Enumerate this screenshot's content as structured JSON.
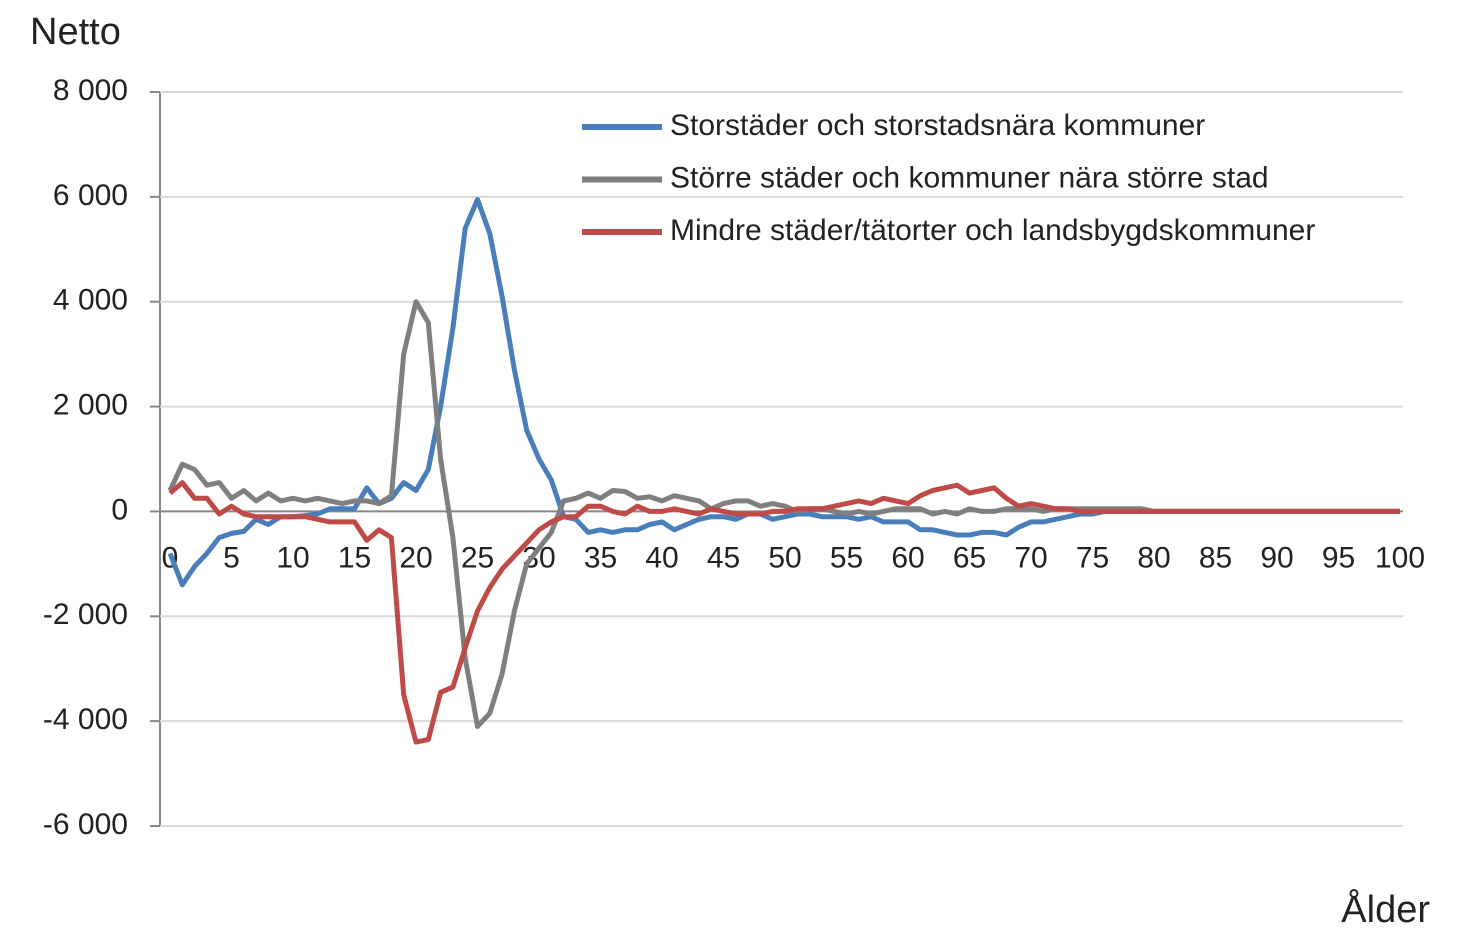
{
  "chart_data": {
    "type": "line",
    "y_label": "Netto",
    "x_label": "Ålder",
    "x": [
      0,
      1,
      2,
      3,
      4,
      5,
      6,
      7,
      8,
      9,
      10,
      11,
      12,
      13,
      14,
      15,
      16,
      17,
      18,
      19,
      20,
      21,
      22,
      23,
      24,
      25,
      26,
      27,
      28,
      29,
      30,
      31,
      32,
      33,
      34,
      35,
      36,
      37,
      38,
      39,
      40,
      41,
      42,
      43,
      44,
      45,
      46,
      47,
      48,
      49,
      50,
      51,
      52,
      53,
      54,
      55,
      56,
      57,
      58,
      59,
      60,
      61,
      62,
      63,
      64,
      65,
      66,
      67,
      68,
      69,
      70,
      71,
      72,
      73,
      74,
      75,
      76,
      77,
      78,
      79,
      80,
      81,
      82,
      83,
      84,
      85,
      86,
      87,
      88,
      89,
      90,
      91,
      92,
      93,
      94,
      95,
      96,
      97,
      98,
      99,
      100
    ],
    "xlim": [
      0,
      100
    ],
    "xticks": [
      0,
      5,
      10,
      15,
      20,
      25,
      30,
      35,
      40,
      45,
      50,
      55,
      60,
      65,
      70,
      75,
      80,
      85,
      90,
      95,
      100
    ],
    "ylim": [
      -6000,
      8000
    ],
    "yticks": [
      {
        "value": -6000,
        "label": "-6 000"
      },
      {
        "value": -4000,
        "label": "-4 000"
      },
      {
        "value": -2000,
        "label": "-2 000"
      },
      0,
      {
        "value": 2000,
        "label": "2 000"
      },
      {
        "value": 4000,
        "label": "4 000"
      },
      {
        "value": 6000,
        "label": "6 000"
      },
      {
        "value": 8000,
        "label": "8 000"
      }
    ],
    "grid": true,
    "legend": "upper right",
    "series": [
      {
        "name": "Storstäder och storstadsnära kommuner",
        "color": "#4a7ebb",
        "values": [
          -800,
          -1400,
          -1050,
          -800,
          -500,
          -420,
          -380,
          -150,
          -250,
          -100,
          -100,
          -80,
          -50,
          50,
          50,
          50,
          450,
          150,
          250,
          550,
          400,
          800,
          2000,
          3500,
          5400,
          5950,
          5300,
          4100,
          2700,
          1550,
          1000,
          600,
          -100,
          -150,
          -400,
          -350,
          -400,
          -350,
          -350,
          -250,
          -200,
          -350,
          -250,
          -150,
          -100,
          -100,
          -150,
          -50,
          -50,
          -150,
          -100,
          -50,
          -50,
          -100,
          -100,
          -100,
          -150,
          -100,
          -200,
          -200,
          -200,
          -350,
          -350,
          -400,
          -450,
          -450,
          -400,
          -400,
          -450,
          -300,
          -200,
          -200,
          -150,
          -100,
          -50,
          -50,
          0,
          0,
          0,
          0,
          0,
          0,
          0,
          0,
          0,
          0,
          0,
          0,
          0,
          0,
          0,
          0,
          0,
          0,
          0,
          0,
          0,
          0,
          0,
          0,
          0
        ]
      },
      {
        "name": "Större städer och kommuner nära större stad",
        "color": "#7f7f7f",
        "values": [
          400,
          900,
          800,
          500,
          550,
          250,
          400,
          200,
          350,
          200,
          250,
          200,
          250,
          200,
          150,
          200,
          200,
          150,
          300,
          3000,
          4000,
          3600,
          1000,
          -500,
          -2800,
          -4100,
          -3850,
          -3100,
          -1900,
          -1000,
          -700,
          -400,
          200,
          250,
          350,
          250,
          400,
          380,
          250,
          280,
          200,
          300,
          250,
          200,
          50,
          150,
          200,
          200,
          100,
          150,
          100,
          0,
          50,
          50,
          0,
          -50,
          0,
          -50,
          0,
          50,
          50,
          50,
          -50,
          0,
          -50,
          50,
          0,
          0,
          50,
          50,
          50,
          0,
          50,
          50,
          50,
          50,
          50,
          50,
          50,
          50,
          0,
          0,
          0,
          0,
          0,
          0,
          0,
          0,
          0,
          0,
          0,
          0,
          0,
          0,
          0,
          0,
          0,
          0,
          0,
          0,
          0
        ]
      },
      {
        "name": "Mindre städer/tätorter och landsbygdskommuner",
        "color": "#be4b48",
        "values": [
          350,
          550,
          250,
          250,
          -50,
          100,
          -50,
          -100,
          -100,
          -100,
          -100,
          -100,
          -150,
          -200,
          -200,
          -200,
          -550,
          -350,
          -500,
          -3500,
          -4400,
          -4350,
          -3450,
          -3350,
          -2600,
          -1900,
          -1450,
          -1100,
          -850,
          -600,
          -350,
          -200,
          -100,
          -100,
          100,
          100,
          0,
          -50,
          100,
          0,
          0,
          50,
          0,
          -50,
          50,
          0,
          -50,
          -50,
          -50,
          0,
          0,
          50,
          50,
          50,
          100,
          150,
          200,
          150,
          250,
          200,
          150,
          300,
          400,
          450,
          500,
          350,
          400,
          450,
          250,
          100,
          150,
          100,
          50,
          50,
          0,
          0,
          0,
          0,
          0,
          0,
          0,
          0,
          0,
          0,
          0,
          0,
          0,
          0,
          0,
          0,
          0,
          0,
          0,
          0,
          0,
          0,
          0,
          0,
          0,
          0,
          0
        ]
      }
    ]
  }
}
